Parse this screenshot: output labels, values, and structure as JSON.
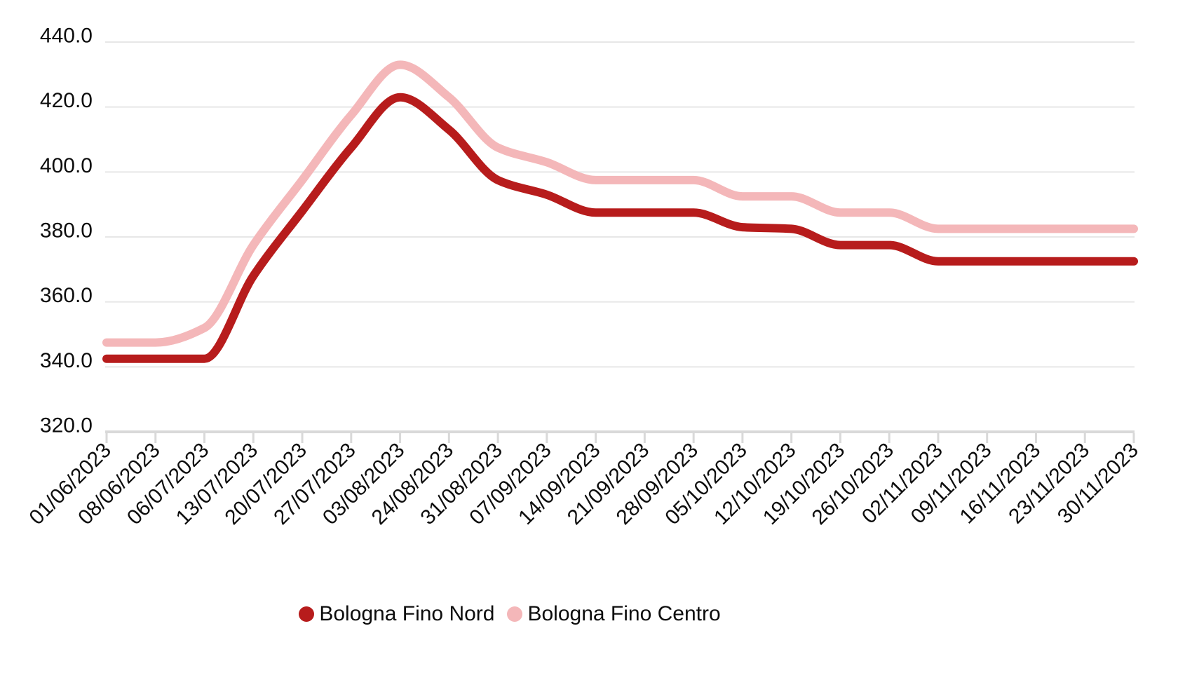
{
  "chart_data": {
    "type": "line",
    "title": "",
    "categories": [
      "01/06/2023",
      "08/06/2023",
      "06/07/2023",
      "13/07/2023",
      "20/07/2023",
      "27/07/2023",
      "03/08/2023",
      "24/08/2023",
      "31/08/2023",
      "07/09/2023",
      "14/09/2023",
      "21/09/2023",
      "28/09/2023",
      "05/10/2023",
      "12/10/2023",
      "19/10/2023",
      "26/10/2023",
      "02/11/2023",
      "09/11/2023",
      "16/11/2023",
      "23/11/2023",
      "30/11/2023"
    ],
    "series": [
      {
        "name": "Bologna Fino Nord",
        "color": "#b71c1c",
        "values": [
          342.5,
          342.5,
          342.5,
          368,
          388,
          407.5,
          423,
          413,
          397.5,
          393,
          387.5,
          387.5,
          387.5,
          383,
          382.5,
          377.5,
          377.5,
          372.5,
          372.5,
          372.5,
          372.5,
          372.5
        ]
      },
      {
        "name": "Bologna Fino Centro",
        "color": "#f4b7b9",
        "values": [
          347.5,
          347.5,
          352,
          377.5,
          397.5,
          417.5,
          433,
          423,
          407.5,
          403,
          397.5,
          397.5,
          397.5,
          392.5,
          392.5,
          387.5,
          387.5,
          382.5,
          382.5,
          382.5,
          382.5,
          382.5
        ]
      }
    ],
    "ylim": [
      320,
      440
    ],
    "y_ticks": [
      "440.0",
      "420.0",
      "400.0",
      "380.0",
      "360.0",
      "340.0",
      "320.0"
    ],
    "xlabel": "",
    "ylabel": "",
    "x_label_rotation": -45,
    "grid": "horizontal",
    "grid_color": "#e7e7e7",
    "axis_color": "#d9d9d9",
    "text_color": "#0d0d0d",
    "legend_position": "bottom"
  }
}
